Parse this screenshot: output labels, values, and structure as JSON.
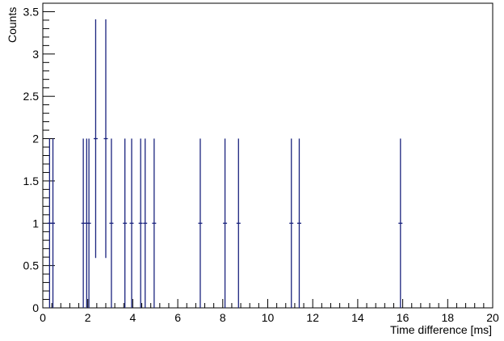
{
  "chart_data": {
    "type": "scatter",
    "style": "histogram-error-bars",
    "xlabel": "Time difference [ms]",
    "ylabel": "Counts",
    "xlim": [
      0,
      20
    ],
    "ylim": [
      0,
      3.6
    ],
    "grid": false,
    "legend": "none",
    "x_ticks": [
      0,
      2,
      4,
      6,
      8,
      10,
      12,
      14,
      16,
      18,
      20
    ],
    "y_ticks": [
      0,
      0.5,
      1,
      1.5,
      2,
      2.5,
      3,
      3.5
    ],
    "x_tick_labels": [
      "0",
      "2",
      "4",
      "6",
      "8",
      "10",
      "12",
      "14",
      "16",
      "18",
      "20"
    ],
    "y_tick_labels": [
      "0",
      "0.5",
      "1",
      "1.5",
      "2",
      "2.5",
      "3",
      "3.5"
    ],
    "series": [
      {
        "color": "#1a237e",
        "points": [
          {
            "x": 0.3,
            "y": 1,
            "err": 1
          },
          {
            "x": 0.45,
            "y": 1,
            "err": 1
          },
          {
            "x": 1.8,
            "y": 1,
            "err": 1
          },
          {
            "x": 1.95,
            "y": 1,
            "err": 1
          },
          {
            "x": 2.05,
            "y": 1,
            "err": 1
          },
          {
            "x": 2.35,
            "y": 2,
            "err": 1.41
          },
          {
            "x": 2.8,
            "y": 2,
            "err": 1.41
          },
          {
            "x": 3.05,
            "y": 1,
            "err": 1
          },
          {
            "x": 3.65,
            "y": 1,
            "err": 1
          },
          {
            "x": 3.95,
            "y": 1,
            "err": 1
          },
          {
            "x": 4.35,
            "y": 1,
            "err": 1
          },
          {
            "x": 4.55,
            "y": 1,
            "err": 1
          },
          {
            "x": 4.95,
            "y": 1,
            "err": 1
          },
          {
            "x": 7.0,
            "y": 1,
            "err": 1
          },
          {
            "x": 8.1,
            "y": 1,
            "err": 1
          },
          {
            "x": 8.7,
            "y": 1,
            "err": 1
          },
          {
            "x": 11.05,
            "y": 1,
            "err": 1
          },
          {
            "x": 11.4,
            "y": 1,
            "err": 1
          },
          {
            "x": 15.9,
            "y": 1,
            "err": 1
          }
        ]
      }
    ]
  }
}
